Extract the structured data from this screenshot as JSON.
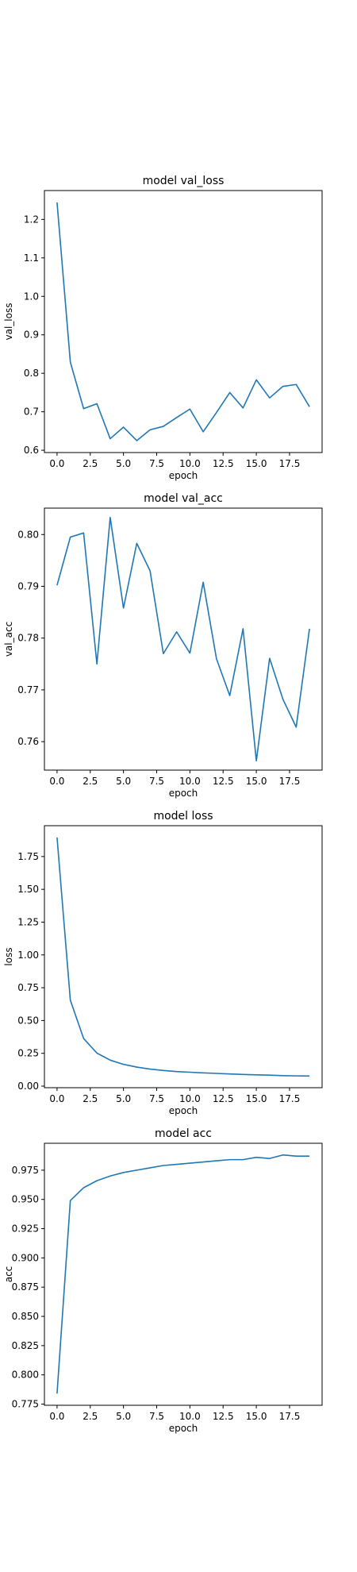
{
  "chart_data": [
    {
      "type": "line",
      "title": "model val_loss",
      "xlabel": "epoch",
      "ylabel": "val_loss",
      "xlim": [
        -0.95,
        19.95
      ],
      "ylim": [
        0.594,
        1.275
      ],
      "xticks": [
        0,
        2.5,
        5,
        7.5,
        10,
        12.5,
        15,
        17.5
      ],
      "xtick_labels": [
        "0.0",
        "2.5",
        "5.0",
        "7.5",
        "10.0",
        "12.5",
        "15.0",
        "17.5"
      ],
      "yticks": [
        0.6,
        0.7,
        0.8,
        0.9,
        1.0,
        1.1,
        1.2
      ],
      "ytick_labels": [
        "0.6",
        "0.7",
        "0.8",
        "0.9",
        "1.0",
        "1.1",
        "1.2"
      ],
      "grid": false,
      "color": "#1f77b4",
      "x": [
        0,
        1,
        2,
        3,
        4,
        5,
        6,
        7,
        8,
        9,
        10,
        11,
        12,
        13,
        14,
        15,
        16,
        17,
        18,
        19
      ],
      "values": [
        1.244,
        0.829,
        0.708,
        0.721,
        0.63,
        0.66,
        0.625,
        0.653,
        0.662,
        0.685,
        0.707,
        0.648,
        0.698,
        0.75,
        0.71,
        0.783,
        0.736,
        0.766,
        0.771,
        0.713
      ]
    },
    {
      "type": "line",
      "title": "model val_acc",
      "xlabel": "epoch",
      "ylabel": "val_acc",
      "xlim": [
        -0.95,
        19.95
      ],
      "ylim": [
        0.7545,
        0.8051
      ],
      "xticks": [
        0,
        2.5,
        5,
        7.5,
        10,
        12.5,
        15,
        17.5
      ],
      "xtick_labels": [
        "0.0",
        "2.5",
        "5.0",
        "7.5",
        "10.0",
        "12.5",
        "15.0",
        "17.5"
      ],
      "yticks": [
        0.76,
        0.77,
        0.78,
        0.79,
        0.8
      ],
      "ytick_labels": [
        "0.76",
        "0.77",
        "0.78",
        "0.79",
        "0.80"
      ],
      "grid": false,
      "color": "#1f77b4",
      "x": [
        0,
        1,
        2,
        3,
        4,
        5,
        6,
        7,
        8,
        9,
        10,
        11,
        12,
        13,
        14,
        15,
        16,
        17,
        18,
        19
      ],
      "values": [
        0.7902,
        0.7995,
        0.8003,
        0.775,
        0.8033,
        0.7858,
        0.7983,
        0.793,
        0.777,
        0.7812,
        0.7771,
        0.7908,
        0.776,
        0.7689,
        0.7818,
        0.7563,
        0.7761,
        0.7682,
        0.7628,
        0.7818
      ]
    },
    {
      "type": "line",
      "title": "model loss",
      "xlabel": "epoch",
      "ylabel": "loss",
      "xlim": [
        -0.95,
        19.95
      ],
      "ylim": [
        -0.012,
        1.985
      ],
      "xticks": [
        0,
        2.5,
        5,
        7.5,
        10,
        12.5,
        15,
        17.5
      ],
      "xtick_labels": [
        "0.0",
        "2.5",
        "5.0",
        "7.5",
        "10.0",
        "12.5",
        "15.0",
        "17.5"
      ],
      "yticks": [
        0,
        0.25,
        0.5,
        0.75,
        1.0,
        1.25,
        1.5,
        1.75
      ],
      "ytick_labels": [
        "0.00",
        "0.25",
        "0.50",
        "0.75",
        "1.00",
        "1.25",
        "1.50",
        "1.75"
      ],
      "grid": false,
      "color": "#1f77b4",
      "x": [
        0,
        1,
        2,
        3,
        4,
        5,
        6,
        7,
        8,
        9,
        10,
        11,
        12,
        13,
        14,
        15,
        16,
        17,
        18,
        19
      ],
      "values": [
        1.895,
        0.655,
        0.363,
        0.252,
        0.198,
        0.166,
        0.145,
        0.13,
        0.119,
        0.111,
        0.106,
        0.101,
        0.097,
        0.093,
        0.089,
        0.086,
        0.084,
        0.08,
        0.078,
        0.077
      ]
    },
    {
      "type": "line",
      "title": "model acc",
      "xlabel": "epoch",
      "ylabel": "acc",
      "xlim": [
        -0.95,
        19.95
      ],
      "ylim": [
        0.774,
        0.998
      ],
      "xticks": [
        0,
        2.5,
        5,
        7.5,
        10,
        12.5,
        15,
        17.5
      ],
      "xtick_labels": [
        "0.0",
        "2.5",
        "5.0",
        "7.5",
        "10.0",
        "12.5",
        "15.0",
        "17.5"
      ],
      "yticks": [
        0.775,
        0.8,
        0.825,
        0.85,
        0.875,
        0.9,
        0.925,
        0.95,
        0.975
      ],
      "ytick_labels": [
        "0.775",
        "0.800",
        "0.825",
        "0.850",
        "0.875",
        "0.900",
        "0.925",
        "0.950",
        "0.975"
      ],
      "grid": false,
      "color": "#1f77b4",
      "x": [
        0,
        1,
        2,
        3,
        4,
        5,
        6,
        7,
        8,
        9,
        10,
        11,
        12,
        13,
        14,
        15,
        16,
        17,
        18,
        19
      ],
      "values": [
        0.784,
        0.949,
        0.96,
        0.966,
        0.97,
        0.973,
        0.975,
        0.977,
        0.979,
        0.98,
        0.981,
        0.982,
        0.983,
        0.984,
        0.984,
        0.986,
        0.985,
        0.988,
        0.987,
        0.987
      ]
    }
  ]
}
